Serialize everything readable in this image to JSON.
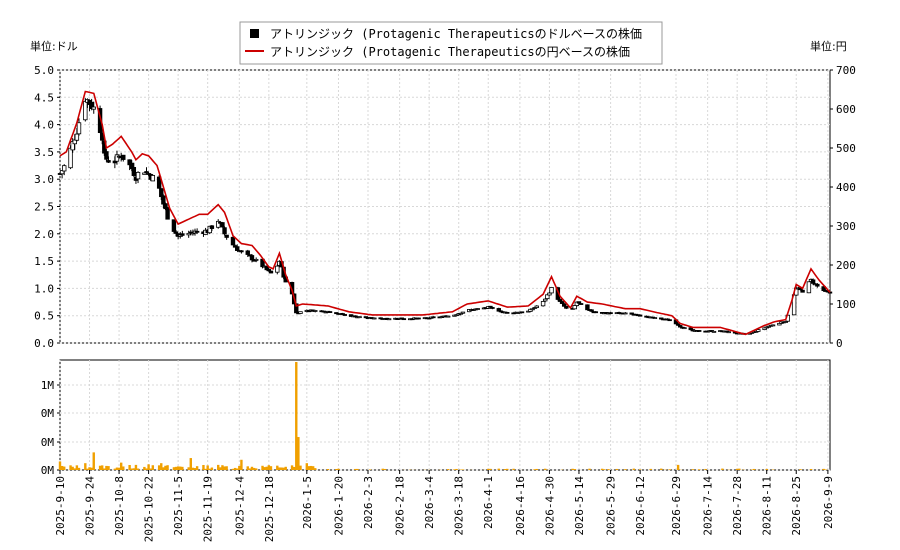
{
  "chart_data": [
    {
      "type": "candlestick+line",
      "legend": [
        {
          "label": "アトリンジック (Protagenic Therapeuticsのドルベースの株価",
          "style": "black-square",
          "color": "#000000"
        },
        {
          "label": "アトリンジック (Protagenic Therapeuticsの円ベースの株価",
          "style": "red-line",
          "color": "#cc0000"
        }
      ],
      "ylabel_left": "単位:ドル",
      "ylabel_right": "単位:円",
      "ylim_left": [
        0,
        5.0
      ],
      "ylim_right": [
        0,
        700
      ],
      "yticks_left": [
        "0.0",
        "0.5",
        "1.0",
        "1.5",
        "2.0",
        "2.5",
        "3.0",
        "3.5",
        "4.0",
        "4.5",
        "5.0"
      ],
      "yticks_right": [
        "0",
        "100",
        "200",
        "300",
        "400",
        "500",
        "600",
        "700"
      ],
      "grid": true,
      "candle_up_color": "#ffffff",
      "candle_down_color": "#000000",
      "price_close_usd_anchors": [
        [
          "2025-09-10",
          3.1
        ],
        [
          "2025-09-13",
          3.3
        ],
        [
          "2025-09-18",
          3.9
        ],
        [
          "2025-09-22",
          4.5
        ],
        [
          "2025-09-26",
          4.3
        ],
        [
          "2025-09-30",
          3.8
        ],
        [
          "2025-10-01",
          3.4
        ],
        [
          "2025-10-05",
          3.3
        ],
        [
          "2025-10-09",
          3.45
        ],
        [
          "2025-10-14",
          3.2
        ],
        [
          "2025-10-16",
          3.05
        ],
        [
          "2025-10-19",
          3.2
        ],
        [
          "2025-10-22",
          3.1
        ],
        [
          "2025-10-26",
          2.95
        ],
        [
          "2025-10-29",
          2.55
        ],
        [
          "2025-11-01",
          2.2
        ],
        [
          "2025-11-05",
          1.95
        ],
        [
          "2025-11-09",
          2.0
        ],
        [
          "2025-11-15",
          2.05
        ],
        [
          "2025-11-19",
          2.05
        ],
        [
          "2025-11-24",
          2.25
        ],
        [
          "2025-11-27",
          2.0
        ],
        [
          "2025-12-01",
          1.8
        ],
        [
          "2025-12-05",
          1.65
        ],
        [
          "2025-12-10",
          1.55
        ],
        [
          "2025-12-14",
          1.45
        ],
        [
          "2025-12-18",
          1.3
        ],
        [
          "2025-12-20",
          1.25
        ],
        [
          "2025-12-23",
          1.5
        ],
        [
          "2025-12-26",
          1.1
        ],
        [
          "2025-12-29",
          0.9
        ],
        [
          "2025-12-31",
          0.55
        ],
        [
          "2026-01-05",
          0.6
        ],
        [
          "2026-01-15",
          0.58
        ],
        [
          "2026-01-25",
          0.5
        ],
        [
          "2026-02-05",
          0.45
        ],
        [
          "2026-02-15",
          0.45
        ],
        [
          "2026-03-01",
          0.45
        ],
        [
          "2026-03-15",
          0.5
        ],
        [
          "2026-03-22",
          0.6
        ],
        [
          "2026-04-01",
          0.65
        ],
        [
          "2026-04-10",
          0.55
        ],
        [
          "2026-04-20",
          0.58
        ],
        [
          "2026-04-27",
          0.75
        ],
        [
          "2026-05-01",
          1.0
        ],
        [
          "2026-05-05",
          0.75
        ],
        [
          "2026-05-10",
          0.55
        ],
        [
          "2026-05-13",
          0.75
        ],
        [
          "2026-05-18",
          0.6
        ],
        [
          "2026-05-25",
          0.55
        ],
        [
          "2026-06-05",
          0.55
        ],
        [
          "2026-06-12",
          0.5
        ],
        [
          "2026-06-20",
          0.45
        ],
        [
          "2026-06-27",
          0.42
        ],
        [
          "2026-07-01",
          0.3
        ],
        [
          "2026-07-07",
          0.22
        ],
        [
          "2026-07-20",
          0.22
        ],
        [
          "2026-07-28",
          0.18
        ],
        [
          "2026-08-01",
          0.15
        ],
        [
          "2026-08-10",
          0.28
        ],
        [
          "2026-08-15",
          0.35
        ],
        [
          "2026-08-20",
          0.4
        ],
        [
          "2026-08-23",
          0.75
        ],
        [
          "2026-08-25",
          1.0
        ],
        [
          "2026-08-28",
          0.95
        ],
        [
          "2026-09-01",
          1.15
        ],
        [
          "2026-09-05",
          1.0
        ],
        [
          "2026-09-10",
          0.9
        ]
      ],
      "price_jpy_anchors": [
        [
          "2025-09-10",
          480
        ],
        [
          "2025-09-13",
          490
        ],
        [
          "2025-09-18",
          565
        ],
        [
          "2025-09-22",
          645
        ],
        [
          "2025-09-26",
          640
        ],
        [
          "2025-09-30",
          560
        ],
        [
          "2025-10-02",
          500
        ],
        [
          "2025-10-05",
          510
        ],
        [
          "2025-10-09",
          530
        ],
        [
          "2025-10-14",
          490
        ],
        [
          "2025-10-16",
          470
        ],
        [
          "2025-10-19",
          485
        ],
        [
          "2025-10-22",
          480
        ],
        [
          "2025-10-26",
          455
        ],
        [
          "2025-10-29",
          400
        ],
        [
          "2025-11-01",
          345
        ],
        [
          "2025-11-05",
          305
        ],
        [
          "2025-11-09",
          315
        ],
        [
          "2025-11-15",
          330
        ],
        [
          "2025-11-19",
          330
        ],
        [
          "2025-11-24",
          355
        ],
        [
          "2025-11-27",
          335
        ],
        [
          "2025-12-01",
          275
        ],
        [
          "2025-12-05",
          255
        ],
        [
          "2025-12-10",
          250
        ],
        [
          "2025-12-14",
          225
        ],
        [
          "2025-12-18",
          195
        ],
        [
          "2025-12-20",
          190
        ],
        [
          "2025-12-23",
          230
        ],
        [
          "2025-12-26",
          175
        ],
        [
          "2025-12-29",
          135
        ],
        [
          "2025-12-31",
          95
        ],
        [
          "2026-01-03",
          100
        ],
        [
          "2026-01-15",
          95
        ],
        [
          "2026-01-25",
          80
        ],
        [
          "2026-02-05",
          72
        ],
        [
          "2026-02-15",
          72
        ],
        [
          "2026-03-01",
          72
        ],
        [
          "2026-03-15",
          80
        ],
        [
          "2026-03-22",
          100
        ],
        [
          "2026-04-01",
          108
        ],
        [
          "2026-04-10",
          92
        ],
        [
          "2026-04-20",
          95
        ],
        [
          "2026-04-27",
          125
        ],
        [
          "2026-05-01",
          170
        ],
        [
          "2026-05-05",
          120
        ],
        [
          "2026-05-10",
          90
        ],
        [
          "2026-05-13",
          120
        ],
        [
          "2026-05-18",
          105
        ],
        [
          "2026-05-25",
          100
        ],
        [
          "2026-06-05",
          88
        ],
        [
          "2026-06-12",
          88
        ],
        [
          "2026-06-20",
          78
        ],
        [
          "2026-06-27",
          70
        ],
        [
          "2026-07-01",
          50
        ],
        [
          "2026-07-07",
          40
        ],
        [
          "2026-07-20",
          40
        ],
        [
          "2026-07-28",
          28
        ],
        [
          "2026-08-01",
          22
        ],
        [
          "2026-08-10",
          45
        ],
        [
          "2026-08-15",
          55
        ],
        [
          "2026-08-20",
          60
        ],
        [
          "2026-08-23",
          110
        ],
        [
          "2026-08-25",
          150
        ],
        [
          "2026-08-28",
          140
        ],
        [
          "2026-09-01",
          190
        ],
        [
          "2026-09-05",
          160
        ],
        [
          "2026-09-10",
          130
        ]
      ]
    },
    {
      "type": "bar",
      "series_name": "volume",
      "color": "#f0a000",
      "yticks": [
        "0M",
        "0M",
        "0M",
        "1M"
      ],
      "ymax_shares": 1900000,
      "volume_spikes": [
        [
          "2025-09-10",
          150000
        ],
        [
          "2025-09-22",
          120000
        ],
        [
          "2025-09-26",
          310000
        ],
        [
          "2025-10-09",
          130000
        ],
        [
          "2025-10-16",
          90000
        ],
        [
          "2025-10-22",
          100000
        ],
        [
          "2025-10-28",
          120000
        ],
        [
          "2025-11-01",
          230000
        ],
        [
          "2025-11-11",
          210000
        ],
        [
          "2025-11-24",
          90000
        ],
        [
          "2025-12-05",
          180000
        ],
        [
          "2025-12-07",
          570000
        ],
        [
          "2025-12-14",
          90000
        ],
        [
          "2025-12-31",
          1900000
        ],
        [
          "2026-01-01",
          580000
        ],
        [
          "2026-01-05",
          120000
        ],
        [
          "2026-08-22",
          130000
        ],
        [
          "2026-06-30",
          90000
        ]
      ],
      "xticks": [
        "2025-9-10",
        "2025-9-24",
        "2025-10-8",
        "2025-10-22",
        "2025-11-5",
        "2025-11-19",
        "2025-12-4",
        "2025-12-18",
        "2026-1-5",
        "2026-1-20",
        "2026-2-3",
        "2026-2-18",
        "2026-3-4",
        "2026-3-18",
        "2026-4-1",
        "2026-4-16",
        "2026-4-30",
        "2026-5-14",
        "2026-5-29",
        "2026-6-12",
        "2026-6-29",
        "2026-7-14",
        "2026-7-28",
        "2026-8-11",
        "2026-8-25",
        "2026-9-9"
      ]
    }
  ]
}
